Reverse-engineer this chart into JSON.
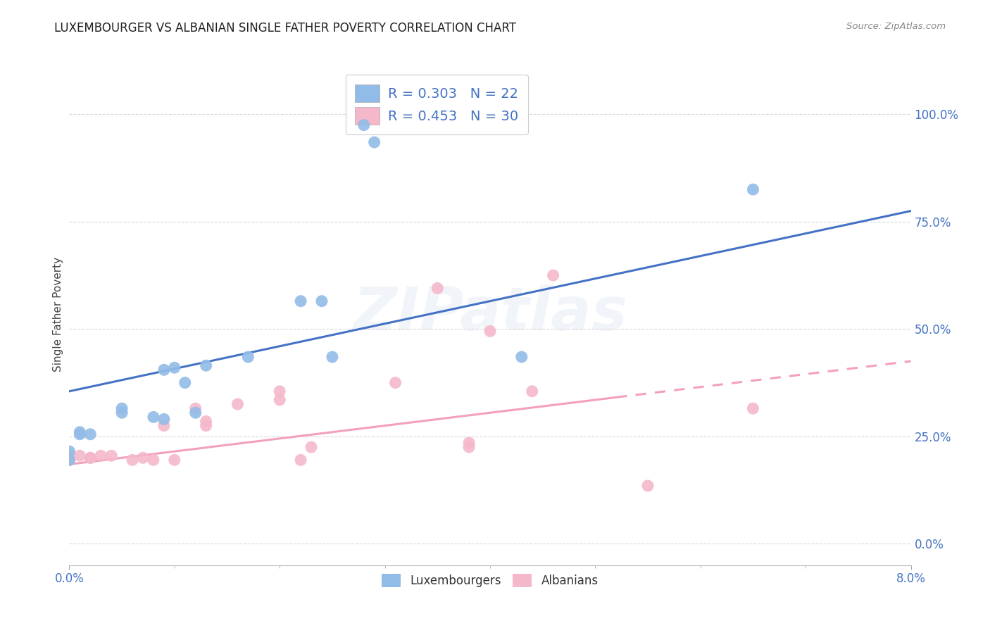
{
  "title": "LUXEMBOURGER VS ALBANIAN SINGLE FATHER POVERTY CORRELATION CHART",
  "source": "Source: ZipAtlas.com",
  "ylabel": "Single Father Poverty",
  "ytick_labels": [
    "0.0%",
    "25.0%",
    "50.0%",
    "75.0%",
    "100.0%"
  ],
  "ytick_values": [
    0.0,
    0.25,
    0.5,
    0.75,
    1.0
  ],
  "xlim": [
    0.0,
    0.08
  ],
  "ylim": [
    -0.05,
    1.12
  ],
  "legend_lux_label": "R = 0.303   N = 22",
  "legend_alb_label": "R = 0.453   N = 30",
  "watermark": "ZIPatlas",
  "lux_color": "#92bce8",
  "alb_color": "#f5b8ca",
  "lux_line_color": "#4472C4",
  "alb_line_color": "#F4A0BB",
  "lux_scatter": [
    [
      0.0,
      0.195
    ],
    [
      0.0,
      0.215
    ],
    [
      0.001,
      0.255
    ],
    [
      0.002,
      0.255
    ],
    [
      0.005,
      0.305
    ],
    [
      0.005,
      0.315
    ],
    [
      0.008,
      0.295
    ],
    [
      0.009,
      0.29
    ],
    [
      0.009,
      0.405
    ],
    [
      0.01,
      0.41
    ],
    [
      0.011,
      0.375
    ],
    [
      0.012,
      0.305
    ],
    [
      0.013,
      0.415
    ],
    [
      0.017,
      0.435
    ],
    [
      0.022,
      0.565
    ],
    [
      0.024,
      0.565
    ],
    [
      0.025,
      0.435
    ],
    [
      0.028,
      0.975
    ],
    [
      0.029,
      0.935
    ],
    [
      0.043,
      0.435
    ],
    [
      0.065,
      0.825
    ],
    [
      0.001,
      0.26
    ]
  ],
  "alb_scatter": [
    [
      0.0,
      0.195
    ],
    [
      0.0,
      0.195
    ],
    [
      0.0,
      0.205
    ],
    [
      0.001,
      0.205
    ],
    [
      0.002,
      0.2
    ],
    [
      0.002,
      0.2
    ],
    [
      0.003,
      0.205
    ],
    [
      0.004,
      0.205
    ],
    [
      0.006,
      0.195
    ],
    [
      0.007,
      0.2
    ],
    [
      0.008,
      0.195
    ],
    [
      0.009,
      0.275
    ],
    [
      0.01,
      0.195
    ],
    [
      0.012,
      0.315
    ],
    [
      0.013,
      0.275
    ],
    [
      0.013,
      0.285
    ],
    [
      0.016,
      0.325
    ],
    [
      0.02,
      0.335
    ],
    [
      0.02,
      0.355
    ],
    [
      0.022,
      0.195
    ],
    [
      0.023,
      0.225
    ],
    [
      0.031,
      0.375
    ],
    [
      0.035,
      0.595
    ],
    [
      0.038,
      0.225
    ],
    [
      0.038,
      0.235
    ],
    [
      0.04,
      0.495
    ],
    [
      0.044,
      0.355
    ],
    [
      0.046,
      0.625
    ],
    [
      0.055,
      0.135
    ],
    [
      0.065,
      0.315
    ]
  ],
  "lux_trend_x": [
    0.0,
    0.08
  ],
  "lux_trend_y": [
    0.355,
    0.775
  ],
  "alb_trend_x": [
    0.0,
    0.08
  ],
  "alb_trend_y": [
    0.185,
    0.425
  ],
  "alb_trend_solid_end": 0.052,
  "background_color": "#ffffff",
  "grid_color": "#d8d8d8",
  "title_fontsize": 12,
  "tick_fontsize": 12,
  "legend_fontsize": 14
}
